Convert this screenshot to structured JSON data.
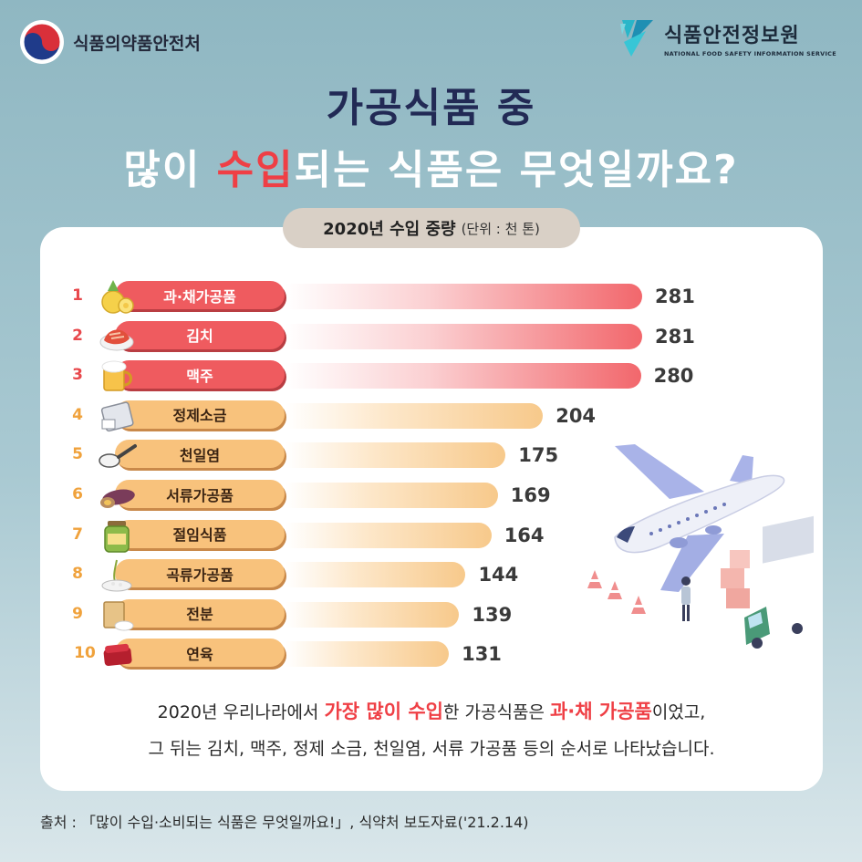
{
  "header": {
    "left_org": "식품의약품안전처",
    "right_org": "식품안전정보원",
    "right_org_en": "NATIONAL FOOD SAFETY INFORMATION SERVICE"
  },
  "title": {
    "line1": "가공식품 중",
    "line2_pre": "많이 ",
    "line2_highlight": "수입",
    "line2_post": "되는 식품은 무엇일까요?"
  },
  "subtitle": {
    "text": "2020년 수입 중량",
    "unit": "(단위 : 천 톤)"
  },
  "chart_data": {
    "type": "bar",
    "orientation": "horizontal",
    "title": "2020년 수입 중량",
    "unit": "(단위 : 천 톤)",
    "categories": [
      "과·채가공품",
      "김치",
      "맥주",
      "정제소금",
      "천일염",
      "서류가공품",
      "절임식품",
      "곡류가공품",
      "전분",
      "연육"
    ],
    "ranks": [
      "1",
      "2",
      "3",
      "4",
      "5",
      "6",
      "7",
      "8",
      "9",
      "10"
    ],
    "values": [
      281,
      281,
      280,
      204,
      175,
      169,
      164,
      144,
      139,
      131
    ],
    "value_labels": [
      "281",
      "281",
      "280",
      "204",
      "175",
      "169",
      "164",
      "144",
      "139",
      "131"
    ],
    "icons": [
      "pineapple-icon",
      "kimchi-icon",
      "beer-icon",
      "salt-icon",
      "sea-salt-spoon-icon",
      "sweet-potato-icon",
      "pickle-jar-icon",
      "rice-grain-icon",
      "starch-bag-icon",
      "fish-paste-icon"
    ],
    "colors": {
      "top3": "#ef5b5f",
      "others": "#f8c27c"
    }
  },
  "summary": {
    "l1_a": "2020년 우리나라에서 ",
    "l1_b": "가장 많이 수입",
    "l1_c": "한 가공식품은 ",
    "l1_d": "과·채 가공품",
    "l1_e": "이었고,",
    "l2": "그 뒤는 김치, 맥주, 정제 소금, 천일염, 서류 가공품 등의 순서로 나타났습니다."
  },
  "source": "출처 : 「많이 수입·소비되는 식품은 무엇일까요!」, 식약처 보도자료('21.2.14)"
}
